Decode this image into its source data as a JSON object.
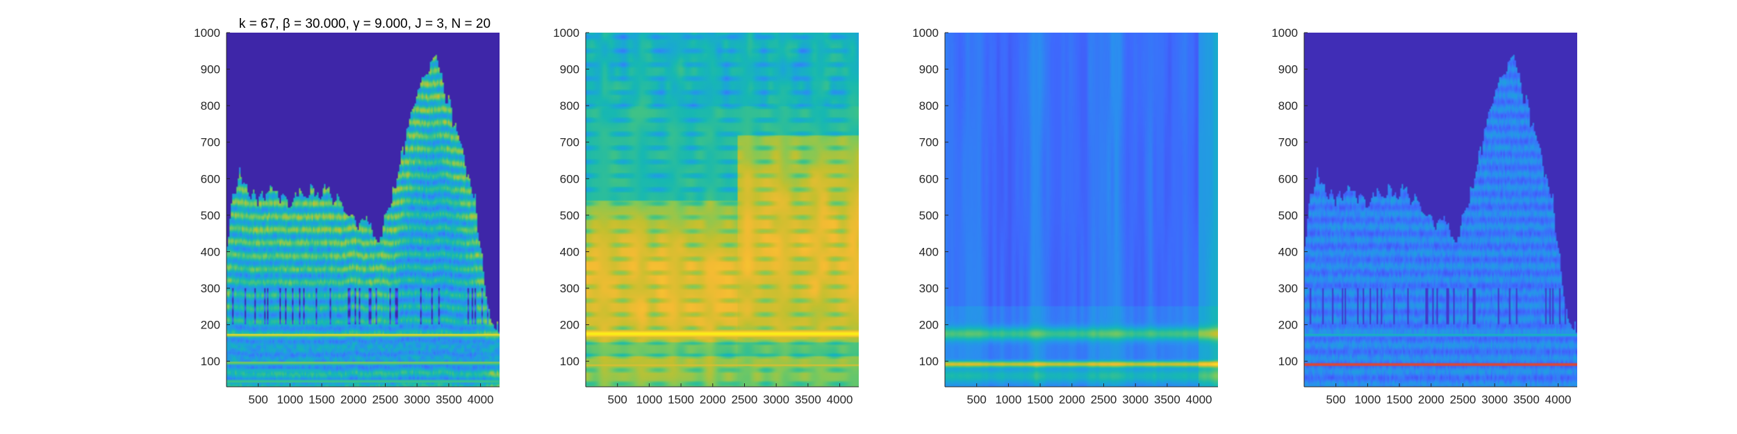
{
  "figure": {
    "title": "k = 67, β = 30.000, γ = 9.000, J = 3, N = 20"
  },
  "colormap": {
    "name": "parula",
    "stops": [
      "#3e26a8",
      "#4744e8",
      "#3e69fd",
      "#2b8ef0",
      "#1aa7d5",
      "#17b8b2",
      "#3fc287",
      "#7fc95a",
      "#c3c02f",
      "#f4bb33",
      "#fbd22b",
      "#f9fb0e"
    ]
  },
  "chart_data": [
    {
      "type": "heatmap",
      "name": "panel-1",
      "title": "k = 67, β = 30.000, γ = 9.000, J = 3, N = 20",
      "xlabel": "",
      "ylabel": "",
      "xlim": [
        0,
        4300
      ],
      "ylim": [
        30,
        1000
      ],
      "xticks": [
        500,
        1000,
        1500,
        2000,
        2500,
        3000,
        3500,
        4000
      ],
      "yticks": [
        100,
        200,
        300,
        400,
        500,
        600,
        700,
        800,
        900,
        1000
      ],
      "grid": false,
      "description_values": {
        "background_level": 0.0,
        "bands_y": [
          45,
          75,
          95,
          170,
          175,
          220,
          270,
          300,
          340,
          380,
          420,
          460,
          500
        ],
        "envelope_x": [
          0,
          100,
          200,
          400,
          700,
          1000,
          1300,
          1700,
          2000,
          2300,
          2400,
          2500,
          2700,
          2900,
          3100,
          3300,
          3500,
          3700,
          3900,
          4100,
          4300
        ],
        "envelope_y": [
          400,
          560,
          620,
          540,
          560,
          530,
          570,
          550,
          480,
          470,
          440,
          500,
          600,
          780,
          880,
          930,
          800,
          680,
          560,
          250,
          170
        ]
      }
    },
    {
      "type": "heatmap",
      "name": "panel-2",
      "xlim": [
        0,
        4300
      ],
      "ylim": [
        30,
        1000
      ],
      "xticks": [
        500,
        1000,
        1500,
        2000,
        2500,
        3000,
        3500,
        4000
      ],
      "yticks": [
        100,
        200,
        300,
        400,
        500,
        600,
        700,
        800,
        900,
        1000
      ],
      "grid": false,
      "description_values": {
        "bright_band_y": [
          150,
          200
        ],
        "warm_region_y_max_left": 550,
        "warm_region_y_max_right": 720
      }
    },
    {
      "type": "heatmap",
      "name": "panel-3",
      "xlim": [
        0,
        4300
      ],
      "ylim": [
        30,
        1000
      ],
      "xticks": [
        500,
        1000,
        1500,
        2000,
        2500,
        3000,
        3500,
        4000
      ],
      "yticks": [
        100,
        200,
        300,
        400,
        500,
        600,
        700,
        800,
        900,
        1000
      ],
      "grid": false,
      "description_values": {
        "bright_band_y": [
          85,
          100
        ],
        "secondary_band_y": [
          160,
          200
        ]
      }
    },
    {
      "type": "heatmap",
      "name": "panel-4",
      "xlim": [
        0,
        4300
      ],
      "ylim": [
        30,
        1000
      ],
      "xticks": [
        500,
        1000,
        1500,
        2000,
        2500,
        3000,
        3500,
        4000
      ],
      "yticks": [
        100,
        200,
        300,
        400,
        500,
        600,
        700,
        800,
        900,
        1000
      ],
      "grid": false,
      "description_values": {
        "red_line_y": 90,
        "envelope_x": [
          0,
          100,
          200,
          400,
          700,
          1000,
          1300,
          1700,
          2000,
          2300,
          2400,
          2500,
          2700,
          2900,
          3100,
          3300,
          3500,
          3700,
          3900,
          4100,
          4300
        ],
        "envelope_y": [
          400,
          560,
          620,
          540,
          560,
          530,
          570,
          550,
          480,
          470,
          440,
          500,
          600,
          780,
          880,
          930,
          800,
          680,
          560,
          250,
          170
        ]
      }
    }
  ]
}
